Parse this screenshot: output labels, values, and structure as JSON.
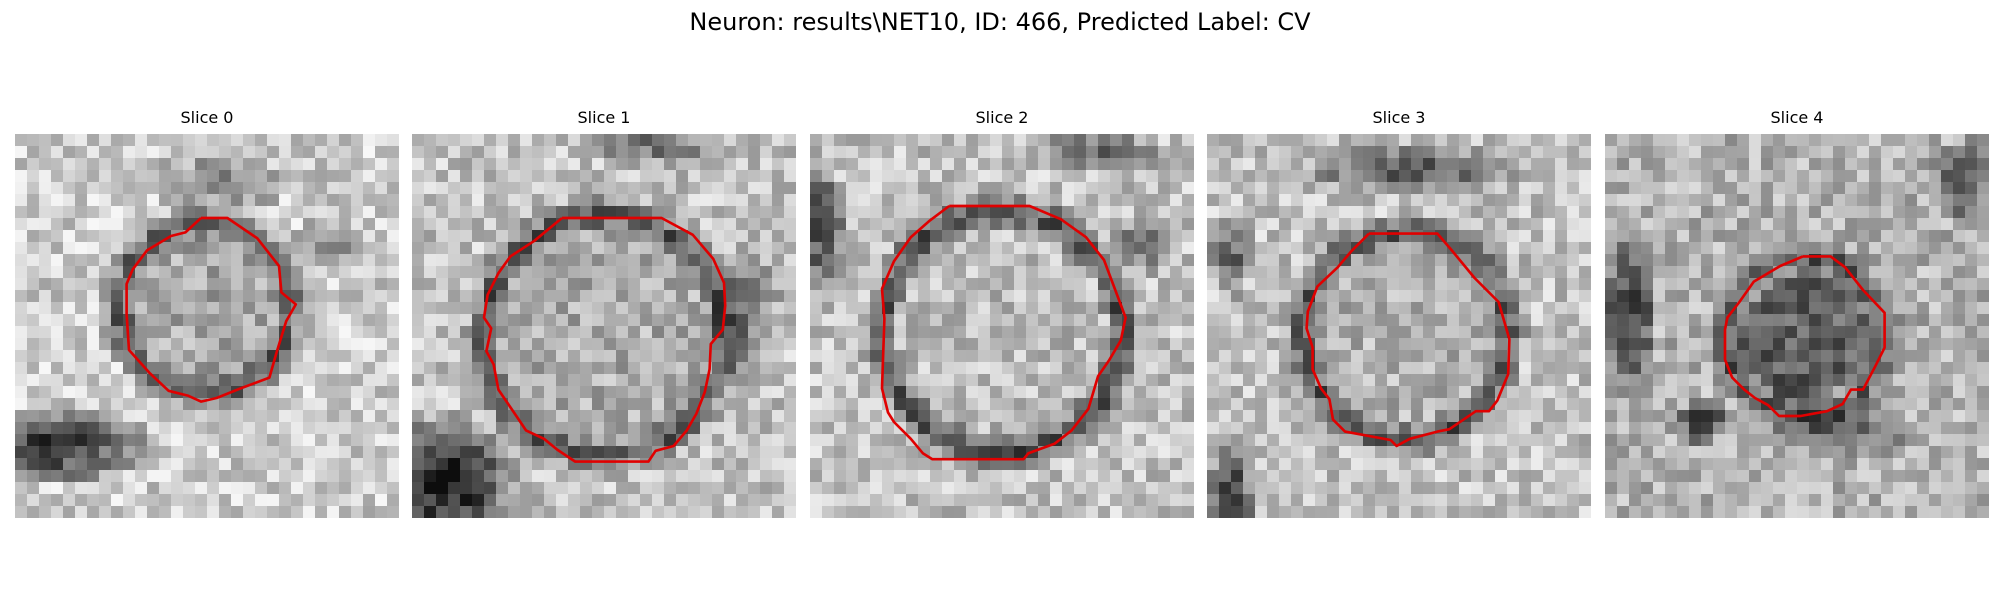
{
  "figure": {
    "title": "Neuron: results\\NET10, ID: 466, Predicted Label: CV"
  },
  "contour_color": "#e00000",
  "colormap": "grayscale",
  "slices": [
    {
      "label": "Slice 0"
    },
    {
      "label": "Slice 1"
    },
    {
      "label": "Slice 2"
    },
    {
      "label": "Slice 3"
    },
    {
      "label": "Slice 4"
    }
  ]
}
